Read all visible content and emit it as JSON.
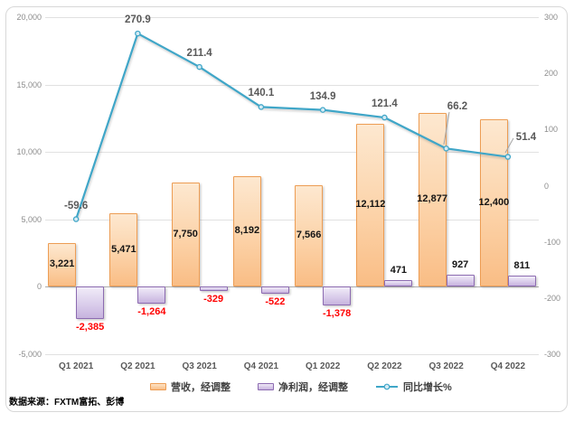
{
  "chart_data": {
    "type": "combo",
    "title": "",
    "categories": [
      "Q1 2021",
      "Q2 2021",
      "Q3 2021",
      "Q4 2021",
      "Q1 2022",
      "Q2 2022",
      "Q3 2022",
      "Q4 2022"
    ],
    "series": [
      {
        "name": "营收，经调整",
        "type": "bar",
        "axis": "left",
        "values": [
          3221,
          5471,
          7750,
          8192,
          7566,
          12112,
          12877,
          12400
        ],
        "labels": [
          "3,221",
          "5,471",
          "7,750",
          "8,192",
          "7,566",
          "12,112",
          "12,877",
          "12,400"
        ]
      },
      {
        "name": "净利润，经调整",
        "type": "bar",
        "axis": "left",
        "values": [
          -2385,
          -1264,
          -329,
          -522,
          -1378,
          471,
          927,
          811
        ],
        "labels": [
          "-2,385",
          "-1,264",
          "-329",
          "-522",
          "-1,378",
          "471",
          "927",
          "811"
        ]
      },
      {
        "name": "同比增长%",
        "type": "line",
        "axis": "right",
        "values": [
          -59.6,
          270.9,
          211.4,
          140.1,
          134.9,
          121.4,
          66.2,
          51.4
        ],
        "labels": [
          "-59.6",
          "270.9",
          "211.4",
          "140.1",
          "134.9",
          "121.4",
          "66.2",
          "51.4"
        ]
      }
    ],
    "left_axis": {
      "min": -5000,
      "max": 20000,
      "step": 5000,
      "ticks": [
        "20,000",
        "15,000",
        "10,000",
        "5,000",
        "0",
        "-5,000"
      ]
    },
    "right_axis": {
      "min": -300,
      "max": 300,
      "step": 100,
      "ticks": [
        "300",
        "200",
        "100",
        "0",
        "-100",
        "-200",
        "-300"
      ]
    },
    "grid": "horizontal",
    "legend_position": "bottom",
    "source": "数据来源：FXTM富拓、彭博"
  },
  "colors": {
    "revenue_fill": "#FBCFA4",
    "revenue_border": "#ED9D54",
    "profit_fill": "#D9CCEA",
    "profit_border": "#8C6BB1",
    "line": "#3FA6C8",
    "marker_fill": "#D6EBF4",
    "negative_label": "#FF0000",
    "grid": "#E1E1E1",
    "axis_text": "#8C8C8C",
    "line_label_text": "#595959"
  }
}
